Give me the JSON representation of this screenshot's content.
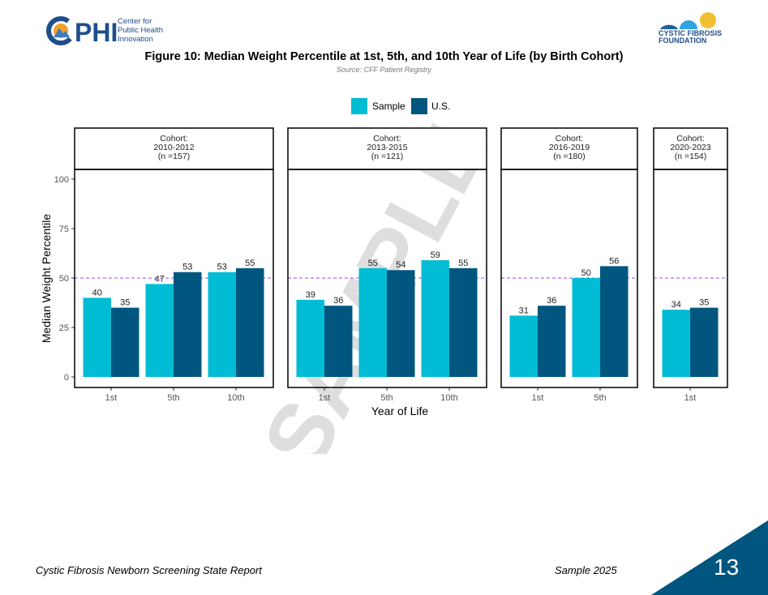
{
  "header": {
    "logo_left": {
      "mark": "CPHI",
      "text": [
        "Center for",
        "Public Health",
        "Innovation"
      ]
    },
    "logo_right": {
      "text": [
        "CYSTIC FIBROSIS",
        "FOUNDATION"
      ]
    }
  },
  "figure": {
    "title": "Figure 10: Median Weight Percentile at 1st, 5th, and 10th Year of Life (by Birth Cohort)",
    "source": "Source: CFF Patient Registry"
  },
  "watermark": "SAMPLE",
  "chart_data": {
    "type": "bar",
    "xlabel": "Year of Life",
    "ylabel": "Median Weight Percentile",
    "ylim": [
      0,
      100
    ],
    "yticks": [
      0,
      25,
      50,
      75,
      100
    ],
    "reference_line": 50,
    "reference_color": "#b36bff",
    "legend": {
      "placement": "top",
      "entries": [
        "Sample",
        "U.S."
      ]
    },
    "series_colors": {
      "Sample": "#00bcd4",
      "U.S.": "#00567f"
    },
    "panels": [
      {
        "strip": [
          "Cohort:",
          "2010-2012",
          "(n =157)"
        ],
        "categories": [
          "1st",
          "5th",
          "10th"
        ],
        "series": [
          {
            "name": "Sample",
            "values": [
              40,
              47,
              53
            ]
          },
          {
            "name": "U.S.",
            "values": [
              35,
              53,
              55
            ]
          }
        ]
      },
      {
        "strip": [
          "Cohort:",
          "2013-2015",
          "(n =121)"
        ],
        "categories": [
          "1st",
          "5th",
          "10th"
        ],
        "series": [
          {
            "name": "Sample",
            "values": [
              39,
              55,
              59
            ]
          },
          {
            "name": "U.S.",
            "values": [
              36,
              54,
              55
            ]
          }
        ]
      },
      {
        "strip": [
          "Cohort:",
          "2016-2019",
          "(n =180)"
        ],
        "categories": [
          "1st",
          "5th"
        ],
        "series": [
          {
            "name": "Sample",
            "values": [
              31,
              50
            ]
          },
          {
            "name": "U.S.",
            "values": [
              36,
              56
            ]
          }
        ]
      },
      {
        "strip": [
          "Cohort:",
          "2020-2023",
          "(n =154)"
        ],
        "categories": [
          "1st"
        ],
        "series": [
          {
            "name": "Sample",
            "values": [
              34
            ]
          },
          {
            "name": "U.S.",
            "values": [
              35
            ]
          }
        ]
      }
    ]
  },
  "footer": {
    "left": "Cystic Fibrosis Newborn Screening State Report",
    "right": "Sample 2025",
    "page": "13",
    "corner_color": "#00567f"
  }
}
